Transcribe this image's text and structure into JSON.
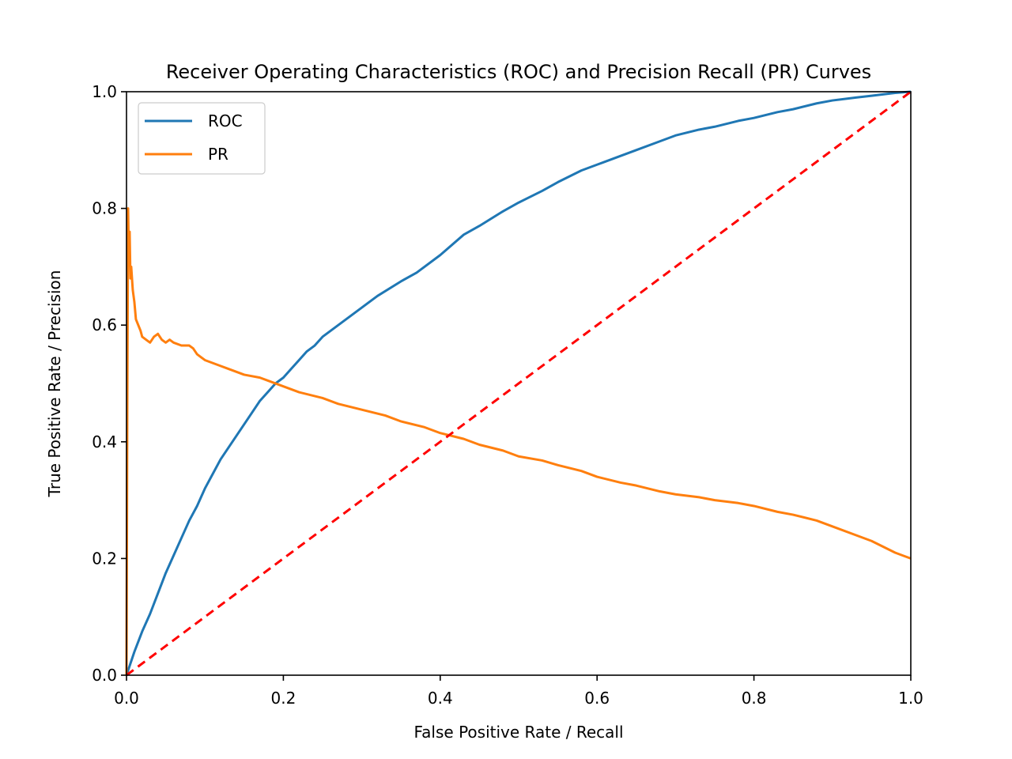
{
  "chart_data": {
    "type": "line",
    "title": "Receiver Operating Characteristics (ROC) and Precision Recall (PR) Curves",
    "xlabel": "False Positive Rate / Recall",
    "ylabel": "True Positive Rate / Precision",
    "xlim": [
      0.0,
      1.0
    ],
    "ylim": [
      0.0,
      1.0
    ],
    "xticks": [
      "0.0",
      "0.2",
      "0.4",
      "0.6",
      "0.8",
      "1.0"
    ],
    "yticks": [
      "0.0",
      "0.2",
      "0.4",
      "0.6",
      "0.8",
      "1.0"
    ],
    "grid": false,
    "legend_position": "upper left",
    "series": [
      {
        "name": "ROC",
        "color": "#1f77b4",
        "style": "solid",
        "points": [
          [
            0.0,
            0.0
          ],
          [
            0.01,
            0.04
          ],
          [
            0.02,
            0.075
          ],
          [
            0.03,
            0.105
          ],
          [
            0.04,
            0.14
          ],
          [
            0.05,
            0.175
          ],
          [
            0.06,
            0.205
          ],
          [
            0.07,
            0.235
          ],
          [
            0.08,
            0.265
          ],
          [
            0.09,
            0.29
          ],
          [
            0.1,
            0.32
          ],
          [
            0.11,
            0.345
          ],
          [
            0.12,
            0.37
          ],
          [
            0.13,
            0.39
          ],
          [
            0.14,
            0.41
          ],
          [
            0.15,
            0.43
          ],
          [
            0.16,
            0.45
          ],
          [
            0.17,
            0.47
          ],
          [
            0.18,
            0.485
          ],
          [
            0.19,
            0.5
          ],
          [
            0.2,
            0.51
          ],
          [
            0.21,
            0.525
          ],
          [
            0.22,
            0.54
          ],
          [
            0.23,
            0.555
          ],
          [
            0.24,
            0.565
          ],
          [
            0.25,
            0.58
          ],
          [
            0.27,
            0.6
          ],
          [
            0.29,
            0.62
          ],
          [
            0.3,
            0.63
          ],
          [
            0.32,
            0.65
          ],
          [
            0.35,
            0.675
          ],
          [
            0.37,
            0.69
          ],
          [
            0.4,
            0.72
          ],
          [
            0.43,
            0.755
          ],
          [
            0.45,
            0.77
          ],
          [
            0.48,
            0.795
          ],
          [
            0.5,
            0.81
          ],
          [
            0.53,
            0.83
          ],
          [
            0.55,
            0.845
          ],
          [
            0.58,
            0.865
          ],
          [
            0.6,
            0.875
          ],
          [
            0.63,
            0.89
          ],
          [
            0.65,
            0.9
          ],
          [
            0.68,
            0.915
          ],
          [
            0.7,
            0.925
          ],
          [
            0.73,
            0.935
          ],
          [
            0.75,
            0.94
          ],
          [
            0.78,
            0.95
          ],
          [
            0.8,
            0.955
          ],
          [
            0.83,
            0.965
          ],
          [
            0.85,
            0.97
          ],
          [
            0.88,
            0.98
          ],
          [
            0.9,
            0.985
          ],
          [
            0.93,
            0.99
          ],
          [
            0.95,
            0.993
          ],
          [
            0.98,
            0.998
          ],
          [
            1.0,
            1.0
          ]
        ]
      },
      {
        "name": "PR",
        "color": "#ff7f0e",
        "style": "solid",
        "points": [
          [
            0.0,
            0.0
          ],
          [
            0.001,
            0.46
          ],
          [
            0.002,
            0.8
          ],
          [
            0.003,
            0.72
          ],
          [
            0.004,
            0.76
          ],
          [
            0.005,
            0.68
          ],
          [
            0.006,
            0.7
          ],
          [
            0.008,
            0.66
          ],
          [
            0.01,
            0.64
          ],
          [
            0.012,
            0.61
          ],
          [
            0.015,
            0.6
          ],
          [
            0.018,
            0.59
          ],
          [
            0.02,
            0.58
          ],
          [
            0.025,
            0.575
          ],
          [
            0.03,
            0.57
          ],
          [
            0.035,
            0.58
          ],
          [
            0.04,
            0.585
          ],
          [
            0.045,
            0.575
          ],
          [
            0.05,
            0.57
          ],
          [
            0.055,
            0.575
          ],
          [
            0.06,
            0.57
          ],
          [
            0.07,
            0.565
          ],
          [
            0.08,
            0.565
          ],
          [
            0.085,
            0.56
          ],
          [
            0.09,
            0.55
          ],
          [
            0.1,
            0.54
          ],
          [
            0.12,
            0.53
          ],
          [
            0.13,
            0.525
          ],
          [
            0.15,
            0.515
          ],
          [
            0.17,
            0.51
          ],
          [
            0.18,
            0.505
          ],
          [
            0.2,
            0.495
          ],
          [
            0.22,
            0.485
          ],
          [
            0.25,
            0.475
          ],
          [
            0.27,
            0.465
          ],
          [
            0.3,
            0.455
          ],
          [
            0.33,
            0.445
          ],
          [
            0.35,
            0.435
          ],
          [
            0.38,
            0.425
          ],
          [
            0.4,
            0.415
          ],
          [
            0.43,
            0.405
          ],
          [
            0.45,
            0.395
          ],
          [
            0.48,
            0.385
          ],
          [
            0.5,
            0.375
          ],
          [
            0.53,
            0.368
          ],
          [
            0.55,
            0.36
          ],
          [
            0.58,
            0.35
          ],
          [
            0.6,
            0.34
          ],
          [
            0.63,
            0.33
          ],
          [
            0.65,
            0.325
          ],
          [
            0.68,
            0.315
          ],
          [
            0.7,
            0.31
          ],
          [
            0.73,
            0.305
          ],
          [
            0.75,
            0.3
          ],
          [
            0.78,
            0.295
          ],
          [
            0.8,
            0.29
          ],
          [
            0.83,
            0.28
          ],
          [
            0.85,
            0.275
          ],
          [
            0.88,
            0.265
          ],
          [
            0.9,
            0.255
          ],
          [
            0.93,
            0.24
          ],
          [
            0.95,
            0.23
          ],
          [
            0.98,
            0.21
          ],
          [
            1.0,
            0.2
          ]
        ]
      },
      {
        "color": "#ff0000",
        "style": "dashed",
        "points": [
          [
            0.0,
            0.0
          ],
          [
            1.0,
            1.0
          ]
        ]
      }
    ]
  }
}
